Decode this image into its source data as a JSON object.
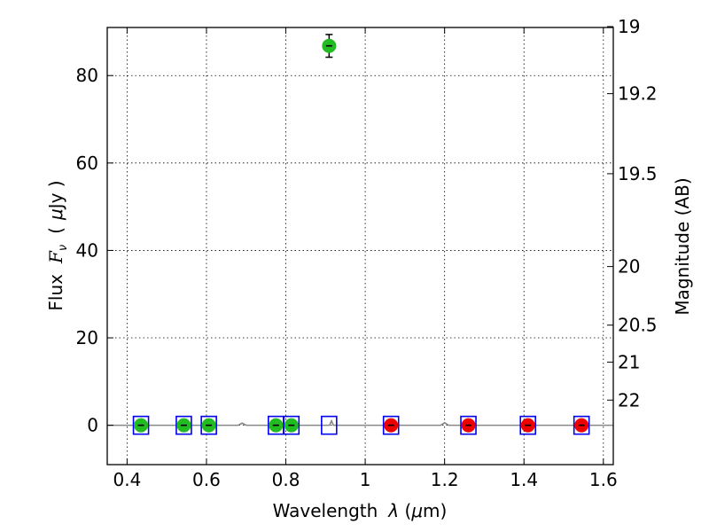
{
  "chart_data": {
    "type": "scatter",
    "xlabel_text": "Wavelength",
    "xlabel_symbol": "λ",
    "xlabel_unit_open": " (",
    "xlabel_unit_mu": "μ",
    "xlabel_unit_rest": "m)",
    "ylabel_text": "Flux",
    "ylabel_symbol": "F",
    "ylabel_subscript": "ν",
    "ylabel_unit_open": "(",
    "ylabel_unit_mu": "μ",
    "ylabel_unit_rest": "Jy )",
    "y2label": "Magnitude (AB)",
    "xlim": [
      0.35,
      1.625
    ],
    "ylim": [
      -9,
      91
    ],
    "grid": true,
    "xticks": [
      0.4,
      0.6,
      0.8,
      1.0,
      1.2,
      1.4,
      1.6
    ],
    "xtick_labels": [
      "0.4",
      "0.6",
      "0.8",
      "1",
      "1.2",
      "1.4",
      "1.6"
    ],
    "yticks": [
      0,
      20,
      40,
      60,
      80
    ],
    "ytick_labels": [
      "0",
      "20",
      "40",
      "60",
      "80"
    ],
    "y2ticks": [
      19,
      19.2,
      19.5,
      20,
      20.5,
      21,
      22
    ],
    "y2tick_labels": [
      "19",
      "19.2",
      "19.5",
      "20",
      "20.5",
      "21",
      "22"
    ],
    "series": [
      {
        "marker": "circle",
        "color": "#22bb22",
        "x": [
          0.435,
          0.543,
          0.606,
          0.775,
          0.814,
          0.909
        ],
        "y": [
          0,
          0,
          0,
          0,
          0,
          86.8
        ],
        "yerr": [
          0.6,
          0.6,
          0.6,
          0.6,
          0.6,
          2.6
        ]
      },
      {
        "marker": "circle",
        "color": "#ee0000",
        "x": [
          1.065,
          1.26,
          1.41,
          1.545
        ],
        "y": [
          0,
          0,
          0,
          0
        ],
        "yerr": [
          0.6,
          0.6,
          0.6,
          0.6
        ]
      },
      {
        "marker": "open-square",
        "color": "#0000ee",
        "x": [
          0.435,
          0.543,
          0.606,
          0.775,
          0.814,
          0.909,
          1.065,
          1.26,
          1.41,
          1.545
        ],
        "y": [
          0,
          0,
          0,
          0,
          0,
          0,
          0,
          0,
          0,
          0
        ]
      },
      {
        "marker": "line",
        "color": "#888888",
        "x": [
          0.35,
          0.68,
          0.69,
          0.7,
          0.91,
          0.915,
          0.92,
          1.19,
          1.2,
          1.21,
          1.625
        ],
        "y": [
          0,
          0,
          0.5,
          0,
          0,
          1.0,
          0,
          0,
          0.6,
          0,
          0
        ]
      }
    ]
  }
}
